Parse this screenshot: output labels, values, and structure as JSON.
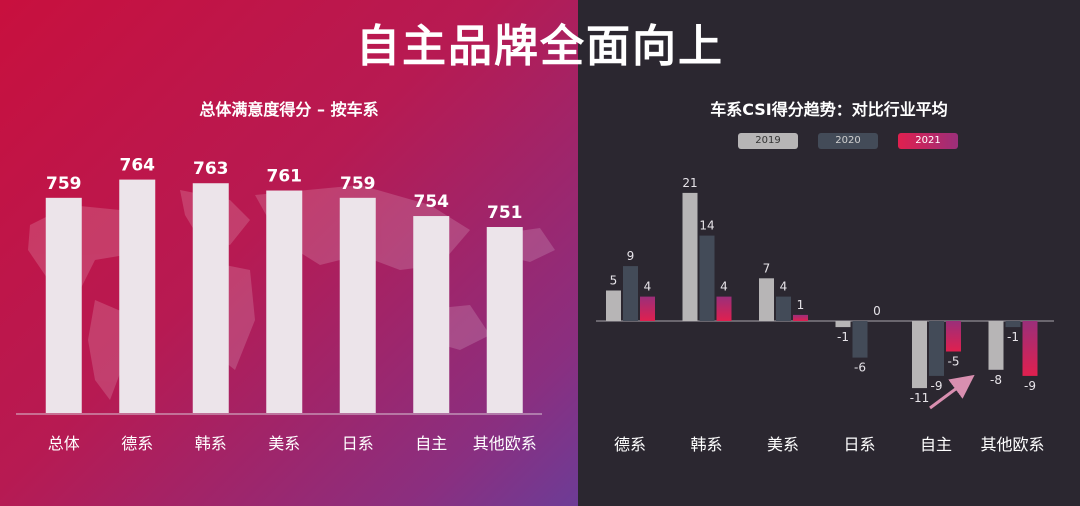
{
  "page": {
    "title": "自主品牌全面向上"
  },
  "colors": {
    "bar_left": "#ece4ea",
    "series_2019": "#b7b5b6",
    "series_2020": "#434b58",
    "series_2021_top": "#e0204f",
    "series_2021_bottom": "#9b2f7a",
    "axis": "#a9a4ad",
    "arrow": "#d98fb0"
  },
  "chart_data": [
    {
      "type": "bar",
      "title": "总体满意度得分 – 按车系",
      "categories": [
        "总体",
        "德系",
        "韩系",
        "美系",
        "日系",
        "自主",
        "其他欧系"
      ],
      "values": [
        759,
        764,
        763,
        761,
        759,
        754,
        751
      ],
      "ylim": [
        700,
        768
      ],
      "grid": false,
      "background_image": "world-map"
    },
    {
      "type": "bar",
      "title": "车系CSI得分趋势：对比行业平均",
      "categories": [
        "德系",
        "韩系",
        "美系",
        "日系",
        "自主",
        "其他欧系"
      ],
      "series": [
        {
          "name": "2019",
          "values": [
            5,
            21,
            7,
            -1,
            -11,
            -8
          ]
        },
        {
          "name": "2020",
          "values": [
            9,
            14,
            4,
            -6,
            -9,
            -1
          ]
        },
        {
          "name": "2021",
          "values": [
            4,
            4,
            1,
            0,
            -5,
            -9
          ]
        }
      ],
      "legend_position": "top-center",
      "ylim": [
        -13,
        23
      ],
      "grid": false,
      "annotations": [
        "arrow-up-near-自主"
      ]
    }
  ]
}
